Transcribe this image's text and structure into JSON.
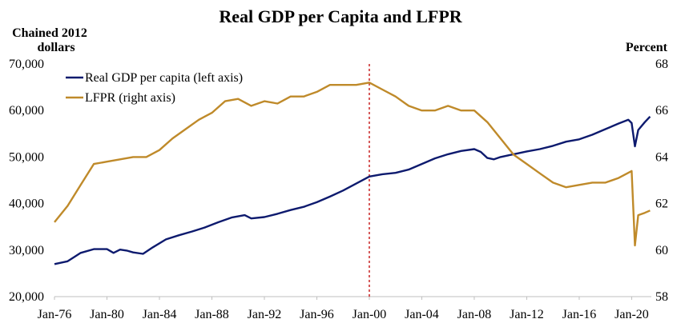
{
  "chart_data": {
    "type": "line",
    "title": "Real GDP per Capita and LFPR",
    "ylabel_left_line1": "Chained 2012",
    "ylabel_left_line2": "dollars",
    "ylabel_right": "Percent",
    "ylim_left": [
      20000,
      70000
    ],
    "ylim_right": [
      58,
      68
    ],
    "left_ticks": [
      "20,000",
      "30,000",
      "40,000",
      "50,000",
      "60,000",
      "70,000"
    ],
    "right_ticks": [
      "58",
      "60",
      "62",
      "64",
      "66",
      "68"
    ],
    "x_ticks": [
      "Jan-76",
      "Jan-80",
      "Jan-84",
      "Jan-88",
      "Jan-92",
      "Jan-96",
      "Jan-00",
      "Jan-04",
      "Jan-08",
      "Jan-12",
      "Jan-16",
      "Jan-20"
    ],
    "x_range": [
      1976.0,
      2021.5
    ],
    "highlight_x": 2000.0,
    "highlight_label": "Jan-00",
    "highlight_color": "#c00000",
    "grid": false,
    "legend_position": "top-left",
    "series": [
      {
        "name": "Real GDP per capita (left axis)",
        "axis": "left",
        "color": "#0d1a6e",
        "points": [
          [
            1976.0,
            27000
          ],
          [
            1977.0,
            27600
          ],
          [
            1977.5,
            28500
          ],
          [
            1978.0,
            29400
          ],
          [
            1979.0,
            30200
          ],
          [
            1980.0,
            30200
          ],
          [
            1980.5,
            29400
          ],
          [
            1981.0,
            30100
          ],
          [
            1981.5,
            29900
          ],
          [
            1982.0,
            29500
          ],
          [
            1982.75,
            29200
          ],
          [
            1983.5,
            30600
          ],
          [
            1984.5,
            32300
          ],
          [
            1985.5,
            33200
          ],
          [
            1986.5,
            34000
          ],
          [
            1987.5,
            34900
          ],
          [
            1988.5,
            36000
          ],
          [
            1989.5,
            37000
          ],
          [
            1990.5,
            37500
          ],
          [
            1991.0,
            36800
          ],
          [
            1992.0,
            37100
          ],
          [
            1993.0,
            37800
          ],
          [
            1994.0,
            38600
          ],
          [
            1995.0,
            39300
          ],
          [
            1996.0,
            40300
          ],
          [
            1997.0,
            41500
          ],
          [
            1998.0,
            42800
          ],
          [
            1999.0,
            44300
          ],
          [
            2000.0,
            45800
          ],
          [
            2001.0,
            46300
          ],
          [
            2002.0,
            46600
          ],
          [
            2003.0,
            47300
          ],
          [
            2004.0,
            48500
          ],
          [
            2005.0,
            49700
          ],
          [
            2006.0,
            50600
          ],
          [
            2007.0,
            51300
          ],
          [
            2008.0,
            51700
          ],
          [
            2008.5,
            51100
          ],
          [
            2009.0,
            49800
          ],
          [
            2009.5,
            49500
          ],
          [
            2010.0,
            50000
          ],
          [
            2011.0,
            50600
          ],
          [
            2012.0,
            51200
          ],
          [
            2013.0,
            51700
          ],
          [
            2014.0,
            52400
          ],
          [
            2015.0,
            53300
          ],
          [
            2016.0,
            53800
          ],
          [
            2017.0,
            54800
          ],
          [
            2018.0,
            56000
          ],
          [
            2019.0,
            57200
          ],
          [
            2019.75,
            58000
          ],
          [
            2020.0,
            57300
          ],
          [
            2020.25,
            52300
          ],
          [
            2020.5,
            55800
          ],
          [
            2021.0,
            57500
          ],
          [
            2021.4,
            58700
          ]
        ]
      },
      {
        "name": "LFPR (right axis)",
        "axis": "right",
        "color": "#bf8a2a",
        "points": [
          [
            1976.0,
            61.2
          ],
          [
            1977.0,
            61.9
          ],
          [
            1978.0,
            62.8
          ],
          [
            1979.0,
            63.7
          ],
          [
            1980.0,
            63.8
          ],
          [
            1981.0,
            63.9
          ],
          [
            1982.0,
            64.0
          ],
          [
            1983.0,
            64.0
          ],
          [
            1984.0,
            64.3
          ],
          [
            1985.0,
            64.8
          ],
          [
            1986.0,
            65.2
          ],
          [
            1987.0,
            65.6
          ],
          [
            1988.0,
            65.9
          ],
          [
            1989.0,
            66.4
          ],
          [
            1990.0,
            66.5
          ],
          [
            1991.0,
            66.2
          ],
          [
            1992.0,
            66.4
          ],
          [
            1993.0,
            66.3
          ],
          [
            1994.0,
            66.6
          ],
          [
            1995.0,
            66.6
          ],
          [
            1996.0,
            66.8
          ],
          [
            1997.0,
            67.1
          ],
          [
            1998.0,
            67.1
          ],
          [
            1999.0,
            67.1
          ],
          [
            2000.0,
            67.2
          ],
          [
            2001.0,
            66.9
          ],
          [
            2002.0,
            66.6
          ],
          [
            2003.0,
            66.2
          ],
          [
            2004.0,
            66.0
          ],
          [
            2005.0,
            66.0
          ],
          [
            2006.0,
            66.2
          ],
          [
            2007.0,
            66.0
          ],
          [
            2008.0,
            66.0
          ],
          [
            2009.0,
            65.5
          ],
          [
            2010.0,
            64.8
          ],
          [
            2011.0,
            64.1
          ],
          [
            2012.0,
            63.7
          ],
          [
            2013.0,
            63.3
          ],
          [
            2014.0,
            62.9
          ],
          [
            2015.0,
            62.7
          ],
          [
            2016.0,
            62.8
          ],
          [
            2017.0,
            62.9
          ],
          [
            2018.0,
            62.9
          ],
          [
            2019.0,
            63.1
          ],
          [
            2020.0,
            63.4
          ],
          [
            2020.25,
            60.2
          ],
          [
            2020.5,
            61.5
          ],
          [
            2021.0,
            61.6
          ],
          [
            2021.4,
            61.7
          ]
        ]
      }
    ]
  }
}
